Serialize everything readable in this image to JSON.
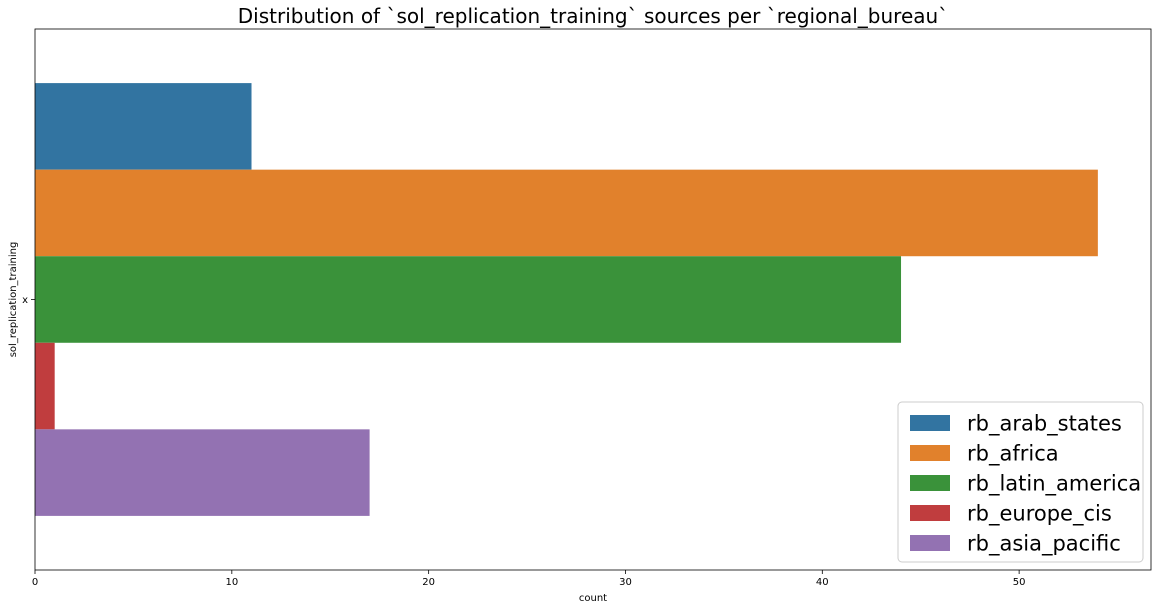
{
  "chart_data": {
    "type": "bar",
    "orientation": "horizontal",
    "title": "Distribution of `sol_replication_training` sources per `regional_bureau`",
    "xlabel": "count",
    "ylabel": "sol_replication_training",
    "categories": [
      "x"
    ],
    "xlim": [
      0,
      56.7
    ],
    "xticks": [
      0,
      10,
      20,
      30,
      40,
      50
    ],
    "grid": false,
    "legend_position": "bottom-right",
    "series": [
      {
        "name": "rb_arab_states",
        "values": [
          11
        ],
        "color": "#3274a1"
      },
      {
        "name": "rb_africa",
        "values": [
          54
        ],
        "color": "#e1812c"
      },
      {
        "name": "rb_latin_america",
        "values": [
          44
        ],
        "color": "#3a923a"
      },
      {
        "name": "rb_europe_cis",
        "values": [
          1
        ],
        "color": "#c03d3e"
      },
      {
        "name": "rb_asia_pacific",
        "values": [
          17
        ],
        "color": "#9372b2"
      }
    ]
  }
}
